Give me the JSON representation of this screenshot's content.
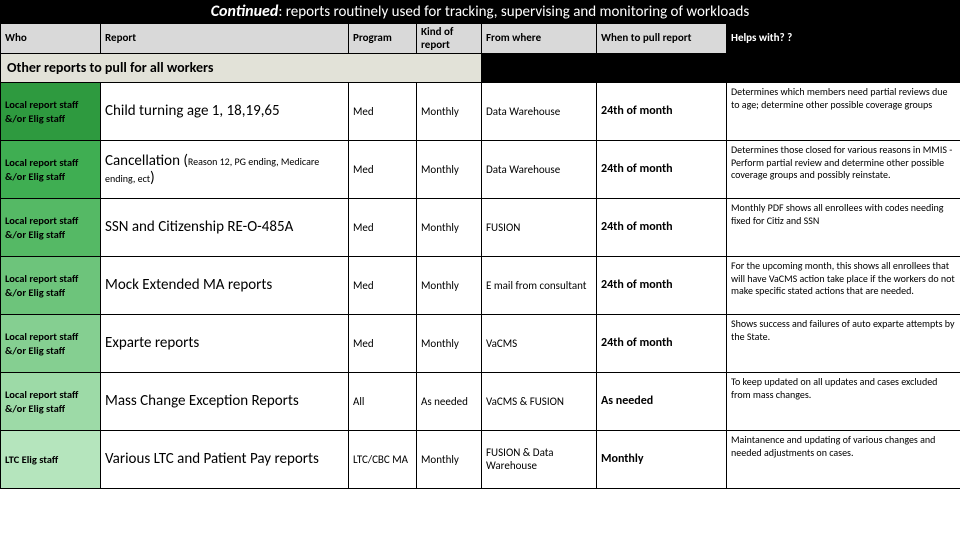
{
  "title": {
    "continued": "Continued",
    "rest": ": reports routinely used for tracking, supervising and monitoring of workloads"
  },
  "columns": {
    "who": "Who",
    "report": "Report",
    "program": "Program",
    "kind": "Kind of report",
    "from": "From where",
    "when": "When to pull report",
    "helps": "Helps with? ?"
  },
  "section": "Other reports to pull for all workers",
  "col_widths": {
    "who": 100,
    "report": 248,
    "program": 68,
    "kind": 65,
    "from": 115,
    "when": 130,
    "helps": 234
  },
  "who_shades": [
    "g1",
    "g2",
    "g3",
    "g4",
    "g5",
    "g6",
    "g7"
  ],
  "rows": [
    {
      "who": "Local report staff &/or Elig staff",
      "report_main": "Child turning age 1, 18,19,65",
      "report_sub": "",
      "program": "Med",
      "kind": "Monthly",
      "from": "Data Warehouse",
      "when": "24th of month",
      "helps": "Determines which members need partial reviews due to age; determine other possible coverage groups"
    },
    {
      "who": "Local report staff &/or Elig staff",
      "report_main": "Cancellation (",
      "report_sub": "Reason 12, PG ending, Medicare ending, ect",
      "report_tail": ")",
      "program": "Med",
      "kind": "Monthly",
      "from": "Data Warehouse",
      "when": "24th of month",
      "helps": "Determines those closed for various reasons in MMIS - Perform partial review and determine other possible coverage groups and possibly reinstate."
    },
    {
      "who": "Local report staff &/or Elig staff",
      "report_main": "SSN and Citizenship RE-O-485A",
      "report_sub": "",
      "program": "Med",
      "kind": "Monthly",
      "from": "FUSION",
      "when": "24th of month",
      "helps": "Monthly PDF shows all enrollees with codes needing fixed for Citiz and SSN"
    },
    {
      "who": "Local report staff &/or Elig staff",
      "report_main": "Mock Extended MA reports",
      "report_sub": "",
      "program": "Med",
      "kind": "Monthly",
      "from": "E mail from consultant",
      "when": "24th of month",
      "helps": "For the upcoming month, this shows all enrollees that will have VaCMS action take place if the workers do not make specific stated actions that are needed."
    },
    {
      "who": "Local report staff &/or Elig staff",
      "report_main": "Exparte reports",
      "report_sub": "",
      "program": "Med",
      "kind": "Monthly",
      "from": "VaCMS",
      "when": "24th of month",
      "helps": "Shows success and failures of auto exparte attempts by the State."
    },
    {
      "who": "Local report staff &/or Elig staff",
      "report_main": "Mass Change Exception Reports",
      "report_sub": "",
      "program": "All",
      "kind": "As needed",
      "from": "VaCMS & FUSION",
      "when": "As needed",
      "helps": "To keep updated on all updates and cases excluded from mass changes."
    },
    {
      "who": "LTC Elig staff",
      "report_main": "Various LTC and Patient Pay reports",
      "report_sub": "",
      "program": "LTC/CBC MA",
      "kind": "Monthly",
      "from": "FUSION & Data Warehouse",
      "when": "Monthly",
      "helps": "Maintanence and updating of various changes and needed adjustments on cases."
    }
  ]
}
